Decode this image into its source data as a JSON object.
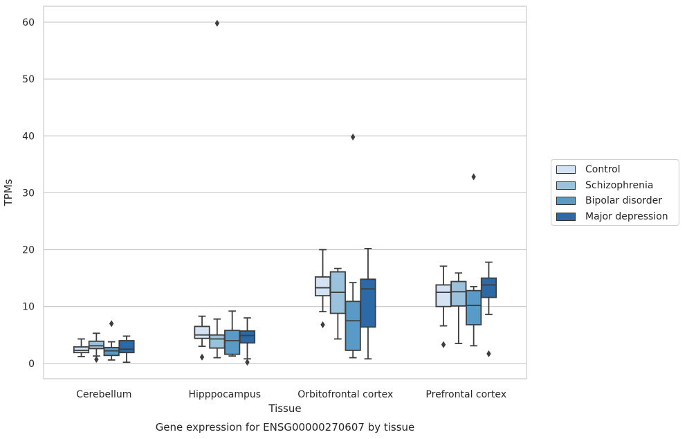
{
  "chart_data": {
    "type": "box",
    "title": "Gene expression for ENSG00000270607 by tissue",
    "xlabel": "Tissue",
    "ylabel": "TPMs",
    "ylim": [
      -2.7,
      62.8
    ],
    "yticks": [
      0,
      10,
      20,
      30,
      40,
      50,
      60
    ],
    "categories": [
      "Cerebellum",
      "Hipppocampus",
      "Orbitofrontal cortex",
      "Prefrontal cortex"
    ],
    "grid": "horizontal",
    "legend_position": "right-center",
    "series": [
      {
        "name": "Control",
        "color": "#d4e3f3",
        "boxes": [
          {
            "whislo": 1.2,
            "q1": 1.9,
            "med": 2.3,
            "q3": 2.9,
            "whishi": 4.3,
            "fliers": []
          },
          {
            "whislo": 3.0,
            "q1": 4.4,
            "med": 5.0,
            "q3": 6.5,
            "whishi": 8.3,
            "fliers": [
              1.1
            ]
          },
          {
            "whislo": 9.1,
            "q1": 11.9,
            "med": 13.3,
            "q3": 15.2,
            "whishi": 20.0,
            "fliers": [
              6.8
            ]
          },
          {
            "whislo": 6.6,
            "q1": 10.0,
            "med": 12.5,
            "q3": 13.8,
            "whishi": 17.1,
            "fliers": [
              3.3
            ]
          }
        ]
      },
      {
        "name": "Schizophrenia",
        "color": "#9ac2dc",
        "boxes": [
          {
            "whislo": 1.3,
            "q1": 2.6,
            "med": 3.1,
            "q3": 3.9,
            "whishi": 5.3,
            "fliers": [
              0.7
            ]
          },
          {
            "whislo": 1.0,
            "q1": 2.7,
            "med": 4.3,
            "q3": 5.0,
            "whishi": 7.8,
            "fliers": [
              59.8
            ]
          },
          {
            "whislo": 4.3,
            "q1": 8.8,
            "med": 12.5,
            "q3": 16.1,
            "whishi": 16.7,
            "fliers": []
          },
          {
            "whislo": 3.5,
            "q1": 10.1,
            "med": 12.6,
            "q3": 14.4,
            "whishi": 15.9,
            "fliers": []
          }
        ]
      },
      {
        "name": "Bipolar disorder",
        "color": "#5a9ac6",
        "boxes": [
          {
            "whislo": 0.6,
            "q1": 1.4,
            "med": 2.2,
            "q3": 2.8,
            "whishi": 3.8,
            "fliers": [
              7.0
            ]
          },
          {
            "whislo": 1.3,
            "q1": 1.6,
            "med": 4.0,
            "q3": 5.8,
            "whishi": 9.2,
            "fliers": []
          },
          {
            "whislo": 1.0,
            "q1": 2.3,
            "med": 7.5,
            "q3": 10.9,
            "whishi": 14.2,
            "fliers": [
              39.8
            ]
          },
          {
            "whislo": 3.1,
            "q1": 6.8,
            "med": 10.2,
            "q3": 12.8,
            "whishi": 13.5,
            "fliers": [
              32.8
            ]
          }
        ]
      },
      {
        "name": "Major depression",
        "color": "#2b6aa6",
        "boxes": [
          {
            "whislo": 0.2,
            "q1": 1.9,
            "med": 2.5,
            "q3": 4.0,
            "whishi": 4.8,
            "fliers": []
          },
          {
            "whislo": 0.8,
            "q1": 3.6,
            "med": 4.9,
            "q3": 5.7,
            "whishi": 8.0,
            "fliers": [
              0.2
            ]
          },
          {
            "whislo": 0.8,
            "q1": 6.4,
            "med": 13.1,
            "q3": 14.8,
            "whishi": 20.2,
            "fliers": []
          },
          {
            "whislo": 8.6,
            "q1": 11.6,
            "med": 13.8,
            "q3": 15.0,
            "whishi": 17.8,
            "fliers": [
              1.7
            ]
          }
        ]
      }
    ]
  }
}
